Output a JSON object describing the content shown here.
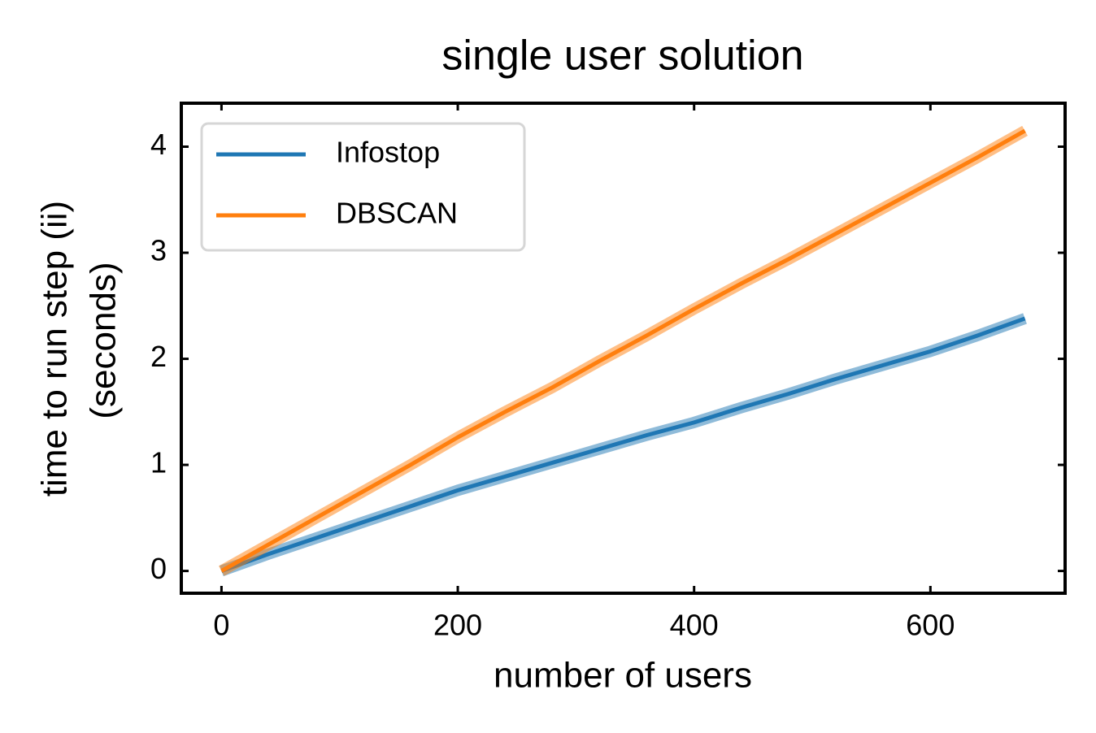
{
  "chart_data": {
    "type": "line",
    "title": "single user solution",
    "xlabel": "number of users",
    "ylabel": [
      "time to run step (ii)",
      "(seconds)"
    ],
    "x": [
      0,
      40,
      80,
      120,
      160,
      200,
      240,
      280,
      320,
      360,
      400,
      440,
      480,
      520,
      560,
      600,
      640,
      680
    ],
    "series": [
      {
        "name": "Infostop",
        "color": "#1f77b4",
        "values": [
          0,
          0.16,
          0.31,
          0.46,
          0.61,
          0.76,
          0.89,
          1.02,
          1.15,
          1.28,
          1.4,
          1.54,
          1.67,
          1.81,
          1.94,
          2.07,
          2.22,
          2.38
        ]
      },
      {
        "name": "DBSCAN",
        "color": "#ff7f0e",
        "values": [
          0,
          0.25,
          0.5,
          0.75,
          1.0,
          1.26,
          1.5,
          1.73,
          1.98,
          2.22,
          2.47,
          2.71,
          2.94,
          3.18,
          3.42,
          3.66,
          3.9,
          4.15
        ]
      }
    ],
    "xlim": [
      -34,
      714
    ],
    "ylim": [
      -0.21,
      4.41
    ],
    "xticks": [
      0,
      200,
      400,
      600
    ],
    "yticks": [
      0,
      1,
      2,
      3,
      4
    ],
    "legend": "upper left"
  }
}
